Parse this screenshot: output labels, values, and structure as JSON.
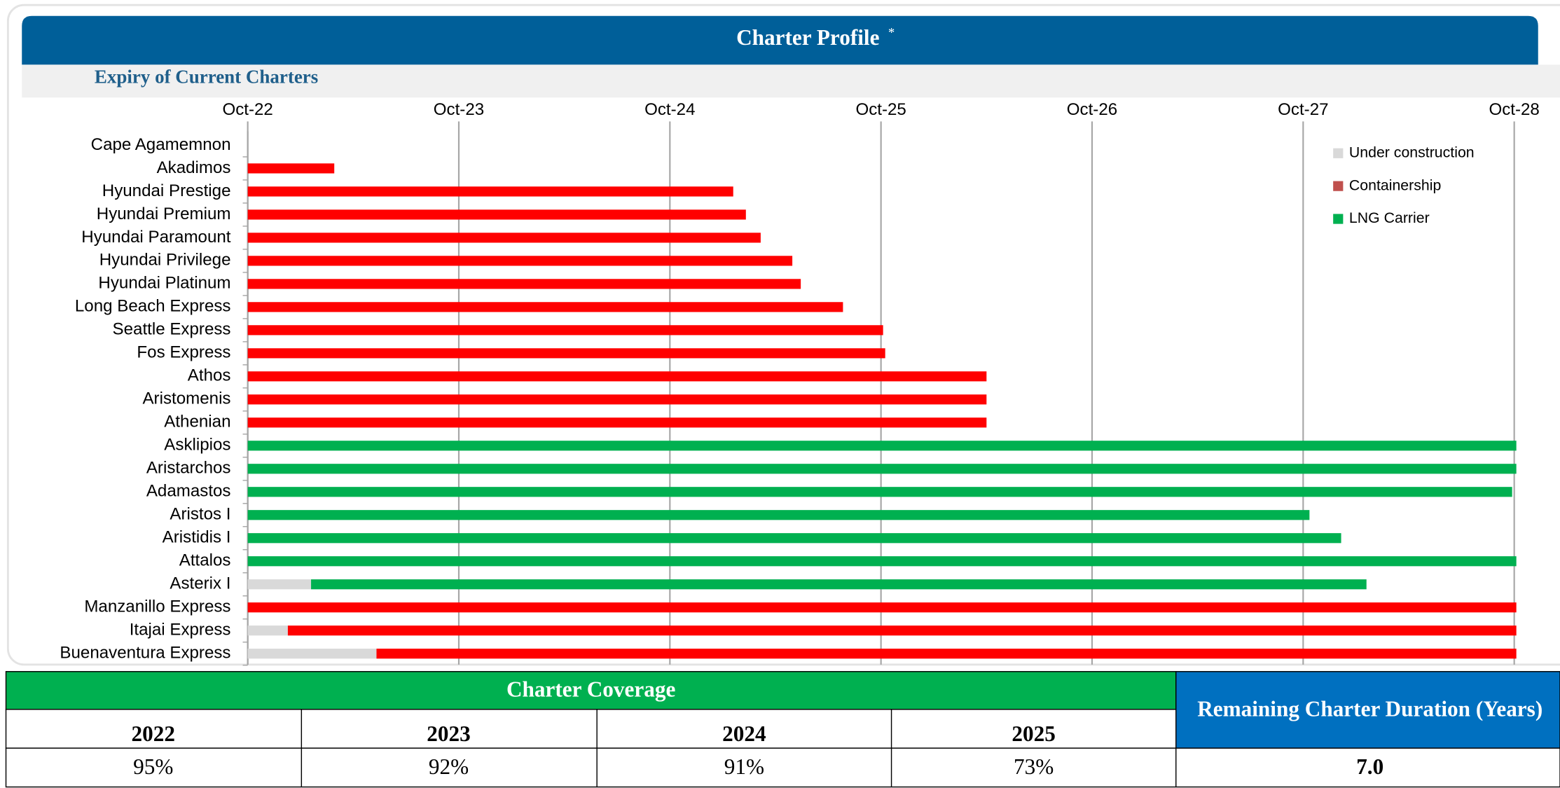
{
  "chart_data": {
    "type": "bar",
    "orientation": "horizontal",
    "stacked": true,
    "title": "Charter Profile",
    "title_note": "*",
    "subtitle": "Expiry of Current Charters",
    "categories": [
      "Cape Agamemnon",
      "Akadimos",
      "Hyundai Prestige",
      "Hyundai Premium",
      "Hyundai Paramount",
      "Hyundai Privilege",
      "Hyundai Platinum",
      "Long Beach Express",
      "Seattle Express",
      "Fos Express",
      "Athos",
      "Aristomenis",
      "Athenian",
      "Asklipios",
      "Aristarchos",
      "Adamastos",
      "Aristos I",
      "Aristidis I",
      "Attalos",
      "Asterix I",
      "Manzanillo Express",
      "Itajai Express",
      "Buenaventura Express"
    ],
    "series": [
      {
        "name": "Under construction",
        "color": "#d9d9d9",
        "values": [
          null,
          null,
          null,
          null,
          null,
          null,
          null,
          null,
          null,
          null,
          null,
          null,
          null,
          null,
          null,
          null,
          null,
          null,
          null,
          0.3,
          null,
          0.19,
          0.61
        ]
      },
      {
        "name": "Containership",
        "color": "#ff0000",
        "legend_color": "#c0504d",
        "values": [
          null,
          0.41,
          2.3,
          2.36,
          2.43,
          2.58,
          2.62,
          2.82,
          3.01,
          3.02,
          3.5,
          3.5,
          3.5,
          null,
          null,
          null,
          null,
          null,
          null,
          null,
          6.01,
          5.82,
          5.4
        ]
      },
      {
        "name": "LNG Carrier",
        "color": "#00b050",
        "values": [
          null,
          null,
          null,
          null,
          null,
          null,
          null,
          null,
          null,
          null,
          null,
          null,
          null,
          6.01,
          6.01,
          5.99,
          5.03,
          5.18,
          6.01,
          5.0,
          null,
          null,
          null
        ]
      }
    ],
    "xlim": [
      0,
      6
    ],
    "xticks": [
      {
        "value": 0,
        "label": "Oct-22"
      },
      {
        "value": 1,
        "label": "Oct-23"
      },
      {
        "value": 2,
        "label": "Oct-24"
      },
      {
        "value": 3,
        "label": "Oct-25"
      },
      {
        "value": 4,
        "label": "Oct-26"
      },
      {
        "value": 5,
        "label": "Oct-27"
      },
      {
        "value": 6,
        "label": "Oct-28"
      }
    ],
    "grid": true,
    "legend": "upper right"
  },
  "coverage_table": {
    "title": "Charter Coverage",
    "years": [
      "2022",
      "2023",
      "2024",
      "2025"
    ],
    "values": [
      "95%",
      "92%",
      "91%",
      "73%"
    ],
    "duration_header": "Remaining Charter Duration (Years)",
    "duration_value": "7.0"
  }
}
